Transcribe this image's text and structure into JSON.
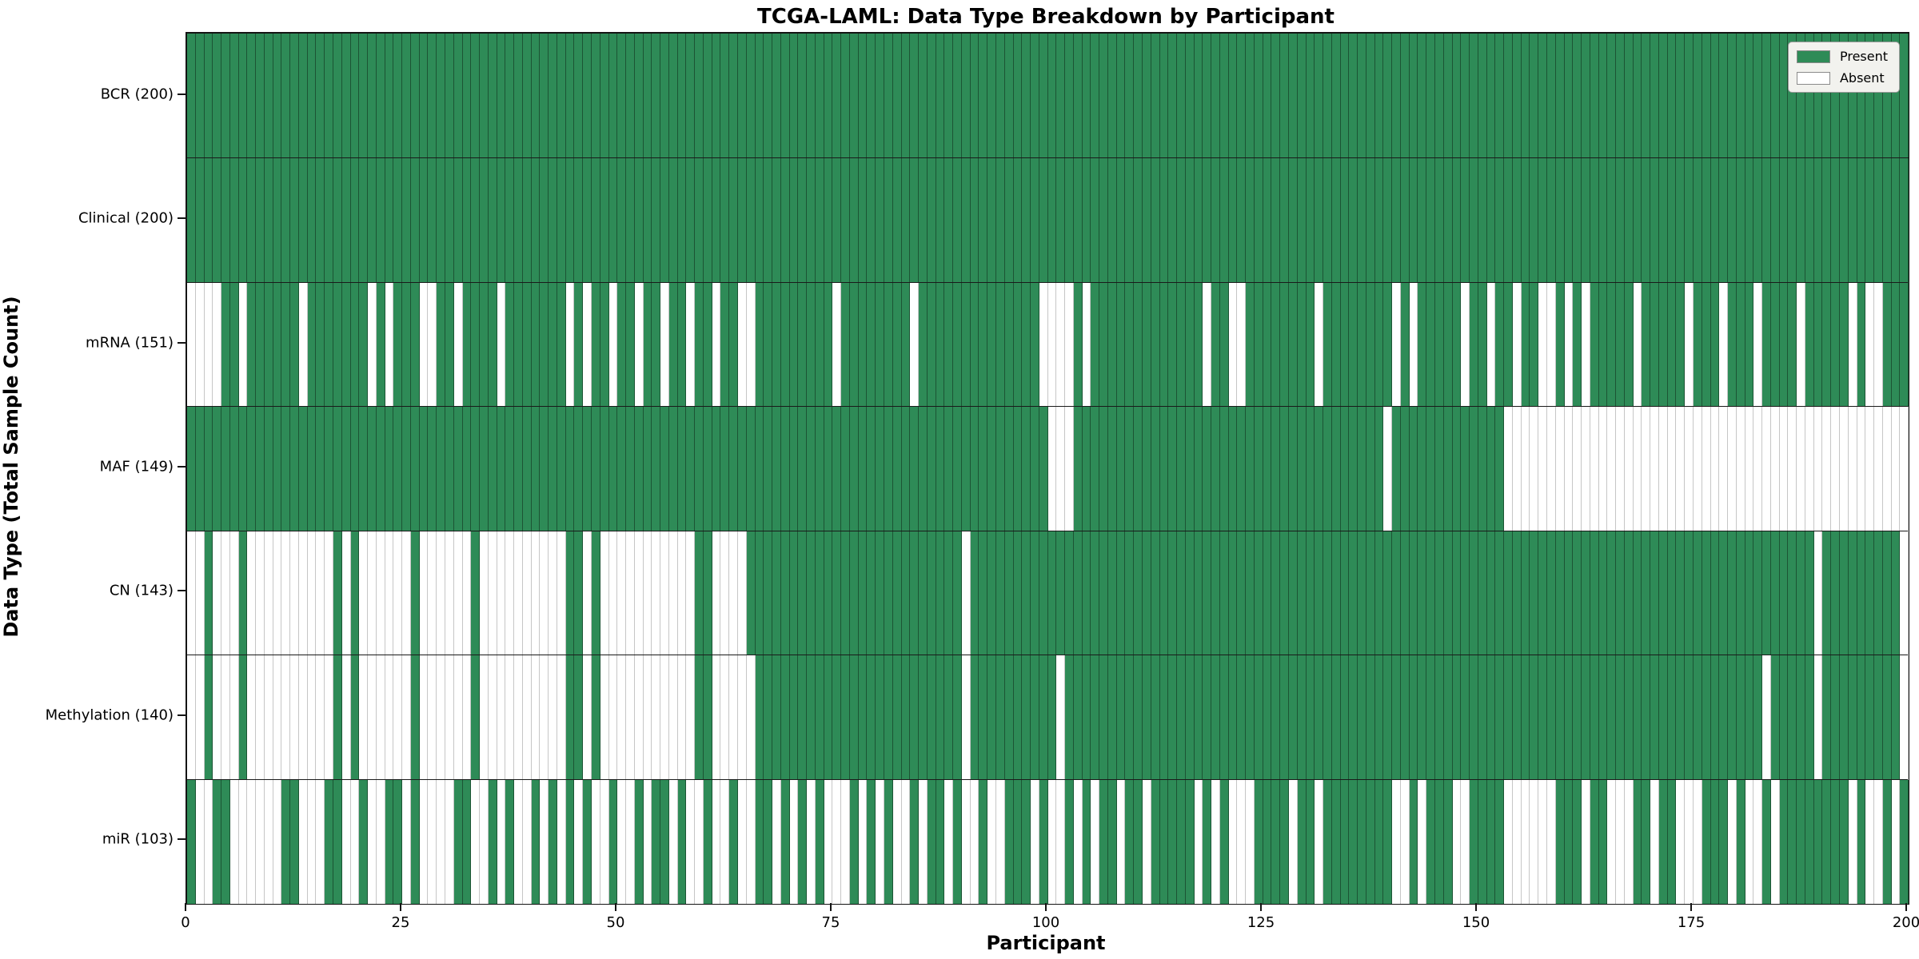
{
  "title": "TCGA-LAML: Data Type Breakdown by Participant",
  "xlabel": "Participant",
  "ylabel": "Data Type (Total Sample Count)",
  "legend": {
    "present_label": "Present",
    "absent_label": "Absent"
  },
  "colors": {
    "present": "#2e8b57",
    "absent": "#ffffff",
    "present_edge": "#1c5434",
    "absent_edge": "#c6c6c6",
    "legend_bg": "#f2f2ee"
  },
  "x_ticks": [
    0,
    25,
    50,
    75,
    100,
    125,
    150,
    175,
    200
  ],
  "n_participants": 200,
  "chart_data": {
    "type": "heatmap",
    "title": "TCGA-LAML: Data Type Breakdown by Participant",
    "xlabel": "Participant",
    "ylabel": "Data Type (Total Sample Count)",
    "x_range": [
      0,
      200
    ],
    "legend_position": "upper right",
    "categories_y": [
      "BCR (200)",
      "Clinical (200)",
      "mRNA (151)",
      "MAF (149)",
      "CN (143)",
      "Methylation (140)",
      "miR (103)"
    ],
    "rows": [
      {
        "name": "BCR",
        "label": "BCR (200)",
        "present_count": 200,
        "absent": []
      },
      {
        "name": "Clinical",
        "label": "Clinical (200)",
        "present_count": 200,
        "absent": []
      },
      {
        "name": "mRNA",
        "label": "mRNA (151)",
        "present_count": 151,
        "absent": [
          0,
          1,
          2,
          3,
          6,
          13,
          21,
          23,
          27,
          28,
          31,
          36,
          44,
          46,
          49,
          52,
          55,
          58,
          61,
          64,
          65,
          75,
          84,
          99,
          100,
          101,
          102,
          104,
          118,
          121,
          122,
          131,
          140,
          142,
          148,
          151,
          154,
          157,
          158,
          160,
          162,
          168,
          174,
          178,
          182,
          187,
          193,
          195,
          196
        ]
      },
      {
        "name": "MAF",
        "label": "MAF (149)",
        "present_count": 149,
        "absent": [
          100,
          101,
          102,
          139,
          153,
          154,
          155,
          156,
          157,
          158,
          159,
          160,
          161,
          162,
          163,
          164,
          165,
          166,
          167,
          168,
          169,
          170,
          171,
          172,
          173,
          174,
          175,
          176,
          177,
          178,
          179,
          180,
          181,
          182,
          183,
          184,
          185,
          186,
          187,
          188,
          189,
          190,
          191,
          192,
          193,
          194,
          195,
          196,
          197,
          198,
          199
        ]
      },
      {
        "name": "CN",
        "label": "CN (143)",
        "present_count": 143,
        "absent": [
          0,
          1,
          3,
          4,
          5,
          7,
          8,
          9,
          10,
          11,
          12,
          13,
          14,
          15,
          16,
          18,
          20,
          21,
          22,
          23,
          24,
          25,
          27,
          28,
          29,
          30,
          31,
          32,
          34,
          35,
          36,
          37,
          38,
          39,
          40,
          41,
          42,
          43,
          46,
          48,
          49,
          50,
          51,
          52,
          53,
          54,
          55,
          56,
          57,
          58,
          61,
          62,
          63,
          64,
          90,
          189,
          199
        ]
      },
      {
        "name": "Methylation",
        "label": "Methylation (140)",
        "present_count": 140,
        "absent": [
          0,
          1,
          3,
          4,
          5,
          7,
          8,
          9,
          10,
          11,
          12,
          13,
          14,
          15,
          16,
          18,
          20,
          21,
          22,
          23,
          24,
          25,
          27,
          28,
          29,
          30,
          31,
          32,
          34,
          35,
          36,
          37,
          38,
          39,
          40,
          41,
          42,
          43,
          46,
          48,
          49,
          50,
          51,
          52,
          53,
          54,
          55,
          56,
          57,
          58,
          61,
          62,
          63,
          64,
          65,
          90,
          101,
          183,
          189,
          199
        ]
      },
      {
        "name": "miR",
        "label": "miR (103)",
        "present_count": 103,
        "absent": [
          1,
          2,
          5,
          6,
          7,
          8,
          9,
          10,
          13,
          14,
          15,
          18,
          19,
          21,
          22,
          25,
          27,
          28,
          29,
          30,
          33,
          34,
          36,
          38,
          39,
          41,
          43,
          45,
          47,
          48,
          50,
          51,
          53,
          56,
          58,
          59,
          61,
          62,
          64,
          65,
          68,
          70,
          72,
          74,
          75,
          76,
          78,
          80,
          82,
          83,
          85,
          88,
          90,
          91,
          93,
          94,
          98,
          100,
          101,
          103,
          105,
          108,
          111,
          117,
          119,
          121,
          122,
          123,
          128,
          131,
          140,
          141,
          143,
          147,
          148,
          153,
          154,
          155,
          156,
          157,
          158,
          162,
          165,
          166,
          167,
          170,
          173,
          174,
          175,
          179,
          181,
          182,
          184,
          193,
          195,
          196,
          198
        ]
      }
    ]
  }
}
